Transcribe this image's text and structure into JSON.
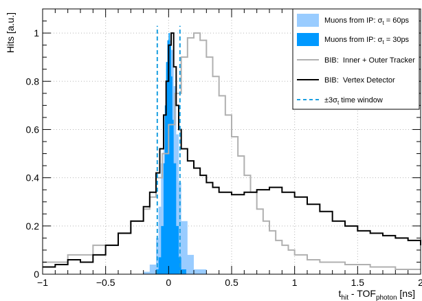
{
  "chart_data": {
    "type": "histogram",
    "xlabel": {
      "main": "t",
      "sub1": "hit",
      "mid": " - TOF",
      "sub2": "photon",
      "unit": " [ns]"
    },
    "ylabel": "Hits [a.u.]",
    "xlim": [
      -1,
      2
    ],
    "ylim": [
      0,
      1.1
    ],
    "xticks": [
      -1,
      -0.5,
      0,
      0.5,
      1,
      1.5,
      2
    ],
    "xtick_labels": [
      "−1",
      "−0.5",
      "0",
      "0.5",
      "1",
      "1.5",
      "2"
    ],
    "yticks": [
      0,
      0.2,
      0.4,
      0.6,
      0.8,
      1
    ],
    "ytick_labels": [
      "0",
      "0.2",
      "0.4",
      "0.6",
      "0.8",
      "1"
    ],
    "grid": true,
    "legend_position": "top-right",
    "series": [
      {
        "name": "Muons from IP: σt = 60ps",
        "label_prefix": "Muons from IP: σ",
        "label_sub": "t",
        "label_suffix": " = 60ps",
        "style": "filled",
        "color": "#99ccff",
        "x": [
          -0.3,
          -0.2,
          -0.15,
          -0.1,
          -0.08,
          -0.06,
          -0.04,
          -0.02,
          0,
          0.02,
          0.04,
          0.06,
          0.08,
          0.1,
          0.15,
          0.2,
          0.3
        ],
        "y": [
          0.0,
          0.01,
          0.04,
          0.15,
          0.28,
          0.46,
          0.66,
          0.85,
          0.97,
          0.93,
          0.78,
          0.58,
          0.38,
          0.22,
          0.08,
          0.02,
          0.0
        ]
      },
      {
        "name": "Muons from IP: σt = 30ps",
        "label_prefix": "Muons from IP: σ",
        "label_sub": "t",
        "label_suffix": " = 30ps",
        "style": "filled",
        "color": "#0099ff",
        "x": [
          -0.14,
          -0.1,
          -0.08,
          -0.06,
          -0.04,
          -0.03,
          -0.02,
          -0.01,
          0,
          0.01,
          0.02,
          0.03,
          0.04,
          0.06,
          0.08,
          0.1,
          0.14
        ],
        "y": [
          0.0,
          0.02,
          0.07,
          0.2,
          0.46,
          0.7,
          0.88,
          0.97,
          1.0,
          0.95,
          0.82,
          0.64,
          0.46,
          0.2,
          0.07,
          0.02,
          0.0
        ]
      },
      {
        "name": "BIB:  Inner + Outer Tracker",
        "style": "step",
        "color": "#b0b0b0",
        "x": [
          -1,
          -0.8,
          -0.6,
          -0.4,
          -0.3,
          -0.2,
          -0.15,
          -0.1,
          -0.05,
          0,
          0.05,
          0.1,
          0.15,
          0.2,
          0.25,
          0.3,
          0.35,
          0.4,
          0.45,
          0.5,
          0.55,
          0.6,
          0.65,
          0.7,
          0.75,
          0.8,
          0.85,
          0.9,
          0.95,
          1.0,
          1.1,
          1.2,
          1.4,
          1.6,
          1.8,
          2.0
        ],
        "y": [
          0.05,
          0.08,
          0.12,
          0.17,
          0.22,
          0.27,
          0.32,
          0.4,
          0.5,
          0.62,
          0.75,
          0.9,
          0.98,
          1.0,
          0.97,
          0.9,
          0.82,
          0.74,
          0.66,
          0.57,
          0.49,
          0.41,
          0.34,
          0.27,
          0.22,
          0.18,
          0.14,
          0.12,
          0.1,
          0.08,
          0.06,
          0.05,
          0.04,
          0.03,
          0.02,
          0.02
        ]
      },
      {
        "name": "BIB:  Vertex Detector",
        "style": "step",
        "color": "#000000",
        "x": [
          -1,
          -0.9,
          -0.8,
          -0.7,
          -0.6,
          -0.5,
          -0.4,
          -0.3,
          -0.2,
          -0.15,
          -0.1,
          -0.07,
          -0.04,
          -0.02,
          0,
          0.02,
          0.04,
          0.06,
          0.08,
          0.1,
          0.15,
          0.2,
          0.25,
          0.3,
          0.35,
          0.4,
          0.5,
          0.6,
          0.7,
          0.8,
          0.9,
          1.0,
          1.1,
          1.2,
          1.3,
          1.4,
          1.5,
          1.6,
          1.7,
          1.8,
          1.9,
          2.0
        ],
        "y": [
          0.03,
          0.04,
          0.06,
          0.05,
          0.08,
          0.12,
          0.17,
          0.22,
          0.28,
          0.34,
          0.42,
          0.52,
          0.66,
          0.8,
          0.95,
          1.0,
          0.86,
          0.7,
          0.6,
          0.52,
          0.47,
          0.44,
          0.41,
          0.38,
          0.36,
          0.34,
          0.33,
          0.34,
          0.35,
          0.36,
          0.34,
          0.32,
          0.29,
          0.26,
          0.22,
          0.2,
          0.18,
          0.17,
          0.16,
          0.15,
          0.14,
          0.12
        ]
      }
    ],
    "time_window": {
      "name": "±3σt time window",
      "label_prefix": "±3σ",
      "label_sub": "t",
      "label_suffix": " time window",
      "color": "#1a9fe0",
      "x_lines": [
        -0.09,
        0.09
      ],
      "ymax": 1.03
    }
  }
}
